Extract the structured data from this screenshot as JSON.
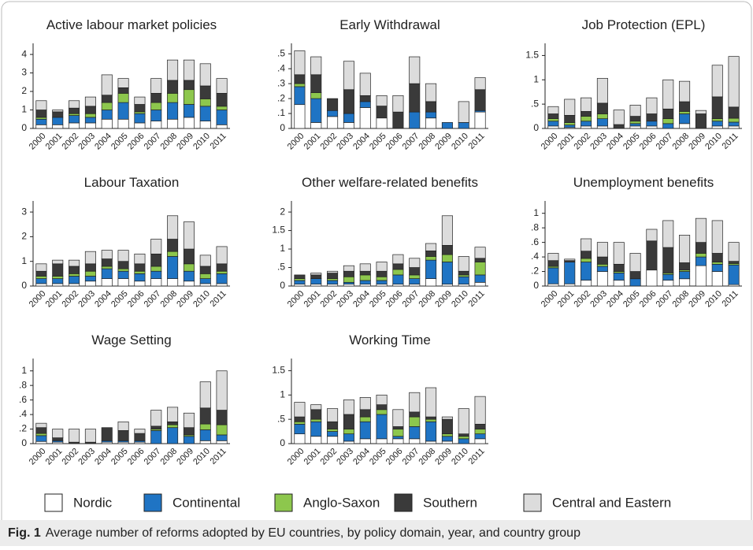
{
  "chart_data": [
    {
      "type": "bar",
      "stacked": true,
      "title": "Active labour market policies",
      "categories": [
        "2000",
        "2001",
        "2002",
        "2003",
        "2004",
        "2005",
        "2006",
        "2007",
        "2008",
        "2009",
        "2010",
        "2011"
      ],
      "ylim": [
        0,
        4.6
      ],
      "yticks": [
        0,
        1,
        2,
        3,
        4
      ],
      "series": [
        {
          "name": "Nordic",
          "color": "#ffffff",
          "values": [
            0.2,
            0.2,
            0.3,
            0.3,
            0.5,
            0.5,
            0.3,
            0.4,
            0.5,
            0.6,
            0.4,
            0.2
          ]
        },
        {
          "name": "Continental",
          "color": "#1f74c4",
          "values": [
            0.3,
            0.4,
            0.4,
            0.3,
            0.5,
            0.9,
            0.5,
            0.6,
            0.9,
            0.7,
            0.8,
            0.8
          ]
        },
        {
          "name": "Anglo-Saxon",
          "color": "#8dc74d",
          "values": [
            0.1,
            0,
            0.1,
            0.2,
            0.4,
            0.5,
            0.1,
            0.4,
            0.5,
            0.8,
            0.4,
            0.2
          ]
        },
        {
          "name": "Southern",
          "color": "#3a3a3a",
          "values": [
            0.4,
            0.3,
            0.3,
            0.4,
            0.4,
            0.3,
            0.4,
            0.5,
            0.7,
            0.5,
            0.7,
            0.7
          ]
        },
        {
          "name": "Central and Eastern",
          "color": "#dcdcdc",
          "values": [
            0.5,
            0.1,
            0.4,
            0.5,
            1.1,
            0.5,
            0.4,
            0.8,
            1.1,
            1.1,
            1.2,
            0.8
          ]
        }
      ]
    },
    {
      "type": "bar",
      "stacked": true,
      "title": "Early Withdrawal",
      "categories": [
        "2000",
        "2001",
        "2002",
        "2003",
        "2004",
        "2005",
        "2006",
        "2007",
        "2008",
        "2009",
        "2010",
        "2011"
      ],
      "ylim": [
        0,
        0.57
      ],
      "yticks": [
        0,
        {
          "value": 0.1,
          "label": ".1"
        },
        {
          "value": 0.2,
          "label": ".2"
        },
        {
          "value": 0.3,
          "label": ".3"
        },
        {
          "value": 0.4,
          "label": ".4"
        },
        {
          "value": 0.5,
          "label": ".5"
        }
      ],
      "series": [
        {
          "name": "Nordic",
          "color": "#ffffff",
          "values": [
            0.16,
            0.04,
            0.08,
            0.04,
            0.14,
            0.07,
            0,
            0,
            0.07,
            0,
            0,
            0.11
          ]
        },
        {
          "name": "Continental",
          "color": "#1f74c4",
          "values": [
            0.12,
            0.16,
            0.04,
            0.06,
            0.04,
            0,
            0,
            0.11,
            0.04,
            0.04,
            0.04,
            0.01
          ]
        },
        {
          "name": "Anglo-Saxon",
          "color": "#8dc74d",
          "values": [
            0.02,
            0.04,
            0,
            0,
            0,
            0,
            0,
            0,
            0,
            0,
            0,
            0
          ]
        },
        {
          "name": "Southern",
          "color": "#3a3a3a",
          "values": [
            0.06,
            0.12,
            0.08,
            0.16,
            0.04,
            0.08,
            0.11,
            0.19,
            0.07,
            0,
            0,
            0.14
          ]
        },
        {
          "name": "Central and Eastern",
          "color": "#dcdcdc",
          "values": [
            0.16,
            0.12,
            0,
            0.19,
            0.15,
            0.07,
            0.11,
            0.18,
            0.12,
            0,
            0.14,
            0.08
          ]
        }
      ]
    },
    {
      "type": "bar",
      "stacked": true,
      "title": "Job Protection (EPL)",
      "categories": [
        "2000",
        "2001",
        "2002",
        "2003",
        "2004",
        "2005",
        "2006",
        "2007",
        "2008",
        "2009",
        "2010",
        "2011"
      ],
      "ylim": [
        0,
        1.75
      ],
      "yticks": [
        0,
        {
          "value": 0.5,
          "label": ".5"
        },
        1,
        1.5
      ],
      "series": [
        {
          "name": "Nordic",
          "color": "#ffffff",
          "values": [
            0.05,
            0.02,
            0.05,
            0.05,
            0,
            0.05,
            0.05,
            0,
            0.1,
            0,
            0.05,
            0.05
          ]
        },
        {
          "name": "Continental",
          "color": "#1f74c4",
          "values": [
            0.1,
            0.05,
            0.1,
            0.15,
            0,
            0.05,
            0.1,
            0.1,
            0.2,
            0,
            0.1,
            0.08
          ]
        },
        {
          "name": "Anglo-Saxon",
          "color": "#8dc74d",
          "values": [
            0.05,
            0.05,
            0.1,
            0.1,
            0,
            0.05,
            0,
            0.1,
            0.05,
            0,
            0.05,
            0.08
          ]
        },
        {
          "name": "Southern",
          "color": "#3a3a3a",
          "values": [
            0.1,
            0.15,
            0.1,
            0.22,
            0.08,
            0.1,
            0.15,
            0.2,
            0.2,
            0.3,
            0.45,
            0.23
          ]
        },
        {
          "name": "Central and Eastern",
          "color": "#dcdcdc",
          "values": [
            0.15,
            0.33,
            0.28,
            0.51,
            0.3,
            0.23,
            0.33,
            0.6,
            0.42,
            0.07,
            0.65,
            1.04
          ]
        }
      ]
    },
    {
      "type": "bar",
      "stacked": true,
      "title": "Labour Taxation",
      "categories": [
        "2000",
        "2001",
        "2002",
        "2003",
        "2004",
        "2005",
        "2006",
        "2007",
        "2008",
        "2009",
        "2010",
        "2011"
      ],
      "ylim": [
        0,
        3.45
      ],
      "yticks": [
        0,
        1,
        2,
        3
      ],
      "series": [
        {
          "name": "Nordic",
          "color": "#ffffff",
          "values": [
            0.1,
            0.1,
            0.1,
            0.2,
            0.3,
            0.3,
            0.2,
            0.3,
            0.3,
            0.2,
            0.1,
            0.1
          ]
        },
        {
          "name": "Continental",
          "color": "#1f74c4",
          "values": [
            0.2,
            0.2,
            0.3,
            0.2,
            0.4,
            0.3,
            0.3,
            0.3,
            0.9,
            0.4,
            0.2,
            0.4
          ]
        },
        {
          "name": "Anglo-Saxon",
          "color": "#8dc74d",
          "values": [
            0.1,
            0.1,
            0.1,
            0.2,
            0.1,
            0.1,
            0.1,
            0.2,
            0.2,
            0.3,
            0.2,
            0.1
          ]
        },
        {
          "name": "Southern",
          "color": "#3a3a3a",
          "values": [
            0.2,
            0.5,
            0.3,
            0.3,
            0.3,
            0.3,
            0.3,
            0.5,
            0.5,
            0.6,
            0.3,
            0.3
          ]
        },
        {
          "name": "Central and Eastern",
          "color": "#dcdcdc",
          "values": [
            0.3,
            0.15,
            0.25,
            0.5,
            0.35,
            0.45,
            0.4,
            0.6,
            0.95,
            1.1,
            0.45,
            0.7
          ]
        }
      ]
    },
    {
      "type": "bar",
      "stacked": true,
      "title": "Other welfare-related benefits",
      "categories": [
        "2000",
        "2001",
        "2002",
        "2003",
        "2004",
        "2005",
        "2006",
        "2007",
        "2008",
        "2009",
        "2010",
        "2011"
      ],
      "ylim": [
        0,
        2.3
      ],
      "yticks": [
        0,
        {
          "value": 0.5,
          "label": ".5"
        },
        1,
        1.5,
        2
      ],
      "series": [
        {
          "name": "Nordic",
          "color": "#ffffff",
          "values": [
            0.05,
            0.05,
            0.05,
            0.05,
            0.05,
            0.05,
            0.05,
            0.05,
            0.2,
            0.05,
            0.05,
            0.1
          ]
        },
        {
          "name": "Continental",
          "color": "#1f74c4",
          "values": [
            0.1,
            0.15,
            0.1,
            0.05,
            0.1,
            0.1,
            0.25,
            0.15,
            0.5,
            0.6,
            0.2,
            0.2
          ]
        },
        {
          "name": "Anglo-Saxon",
          "color": "#8dc74d",
          "values": [
            0.05,
            0,
            0.05,
            0.15,
            0.15,
            0.1,
            0.15,
            0.1,
            0.1,
            0.2,
            0.05,
            0.35
          ]
        },
        {
          "name": "Southern",
          "color": "#3a3a3a",
          "values": [
            0.1,
            0.1,
            0.15,
            0.15,
            0.1,
            0.15,
            0.15,
            0.2,
            0.15,
            0.25,
            0.1,
            0.1
          ]
        },
        {
          "name": "Central and Eastern",
          "color": "#dcdcdc",
          "values": [
            0,
            0.05,
            0.05,
            0.15,
            0.2,
            0.25,
            0.25,
            0.25,
            0.2,
            0.8,
            0.4,
            0.3
          ]
        }
      ]
    },
    {
      "type": "bar",
      "stacked": true,
      "title": "Unemployment benefits",
      "categories": [
        "2000",
        "2001",
        "2002",
        "2003",
        "2004",
        "2005",
        "2006",
        "2007",
        "2008",
        "2009",
        "2010",
        "2011"
      ],
      "ylim": [
        0,
        1.17
      ],
      "yticks": [
        0,
        {
          "value": 0.2,
          "label": ".2"
        },
        {
          "value": 0.4,
          "label": ".4"
        },
        {
          "value": 0.6,
          "label": ".6"
        },
        {
          "value": 0.8,
          "label": ".8"
        },
        1
      ],
      "series": [
        {
          "name": "Nordic",
          "color": "#ffffff",
          "values": [
            0.03,
            0.03,
            0.08,
            0.2,
            0.08,
            0,
            0.22,
            0.08,
            0.1,
            0.28,
            0.2,
            0.02
          ]
        },
        {
          "name": "Continental",
          "color": "#1f74c4",
          "values": [
            0.22,
            0.3,
            0.25,
            0.07,
            0.1,
            0.1,
            0,
            0.08,
            0.1,
            0.12,
            0.1,
            0.27
          ]
        },
        {
          "name": "Anglo-Saxon",
          "color": "#8dc74d",
          "values": [
            0.02,
            0,
            0.05,
            0.03,
            0.02,
            0,
            0,
            0.02,
            0.02,
            0.05,
            0.03,
            0.02
          ]
        },
        {
          "name": "Southern",
          "color": "#3a3a3a",
          "values": [
            0.08,
            0.02,
            0.1,
            0.1,
            0.1,
            0.1,
            0.4,
            0.35,
            0.1,
            0.15,
            0.12,
            0.03
          ]
        },
        {
          "name": "Central and Eastern",
          "color": "#dcdcdc",
          "values": [
            0.1,
            0.02,
            0.17,
            0.2,
            0.3,
            0.25,
            0.16,
            0.37,
            0.38,
            0.33,
            0.45,
            0.26
          ]
        }
      ]
    },
    {
      "type": "bar",
      "stacked": true,
      "title": "Wage Setting",
      "categories": [
        "2000",
        "2001",
        "2002",
        "2003",
        "2004",
        "2005",
        "2006",
        "2007",
        "2008",
        "2009",
        "2010",
        "2011"
      ],
      "ylim": [
        0,
        1.17
      ],
      "yticks": [
        0,
        {
          "value": 0.2,
          "label": ".2"
        },
        {
          "value": 0.4,
          "label": ".4"
        },
        {
          "value": 0.6,
          "label": ".6"
        },
        {
          "value": 0.8,
          "label": ".8"
        },
        1
      ],
      "series": [
        {
          "name": "Nordic",
          "color": "#ffffff",
          "values": [
            0.03,
            0.02,
            0,
            0,
            0.02,
            0.02,
            0.02,
            0,
            0,
            0,
            0.04,
            0.04
          ]
        },
        {
          "name": "Continental",
          "color": "#1f74c4",
          "values": [
            0.08,
            0.02,
            0,
            0,
            0.02,
            0.02,
            0.02,
            0.18,
            0.22,
            0.1,
            0.15,
            0.08
          ]
        },
        {
          "name": "Anglo-Saxon",
          "color": "#8dc74d",
          "values": [
            0.03,
            0,
            0,
            0,
            0,
            0,
            0,
            0.02,
            0.04,
            0.02,
            0.08,
            0.14
          ]
        },
        {
          "name": "Southern",
          "color": "#3a3a3a",
          "values": [
            0.08,
            0.04,
            0.02,
            0.02,
            0.18,
            0.14,
            0.1,
            0.04,
            0.04,
            0.1,
            0.22,
            0.2
          ]
        },
        {
          "name": "Central and Eastern",
          "color": "#dcdcdc",
          "values": [
            0.06,
            0.12,
            0.18,
            0.18,
            0,
            0.12,
            0.06,
            0.22,
            0.2,
            0.2,
            0.36,
            0.54
          ]
        }
      ]
    },
    {
      "type": "bar",
      "stacked": true,
      "title": "Working Time",
      "categories": [
        "2000",
        "2001",
        "2002",
        "2003",
        "2004",
        "2005",
        "2006",
        "2007",
        "2008",
        "2009",
        "2010",
        "2011"
      ],
      "ylim": [
        0,
        1.75
      ],
      "yticks": [
        0,
        {
          "value": 0.5,
          "label": ".5"
        },
        1,
        1.5
      ],
      "series": [
        {
          "name": "Nordic",
          "color": "#ffffff",
          "values": [
            0.2,
            0.15,
            0.15,
            0.05,
            0.1,
            0.1,
            0.1,
            0.1,
            0.05,
            0.05,
            0,
            0.1
          ]
        },
        {
          "name": "Continental",
          "color": "#1f74c4",
          "values": [
            0.2,
            0.3,
            0.1,
            0.15,
            0.35,
            0.5,
            0.05,
            0.25,
            0.4,
            0.1,
            0.1,
            0.1
          ]
        },
        {
          "name": "Anglo-Saxon",
          "color": "#8dc74d",
          "values": [
            0.05,
            0.05,
            0.05,
            0.1,
            0.1,
            0.1,
            0.15,
            0.2,
            0.05,
            0.05,
            0.05,
            0.1
          ]
        },
        {
          "name": "Southern",
          "color": "#3a3a3a",
          "values": [
            0.1,
            0.2,
            0.15,
            0.3,
            0.15,
            0.1,
            0.05,
            0.1,
            0.05,
            0.3,
            0.05,
            0.1
          ]
        },
        {
          "name": "Central and Eastern",
          "color": "#dcdcdc",
          "values": [
            0.3,
            0.1,
            0.27,
            0.3,
            0.25,
            0.2,
            0.35,
            0.4,
            0.6,
            0.05,
            0.52,
            0.57
          ]
        }
      ]
    }
  ],
  "caption": {
    "label": "Fig. 1",
    "text": "Average number of reforms adopted by EU countries, by policy domain, year, and country group"
  }
}
